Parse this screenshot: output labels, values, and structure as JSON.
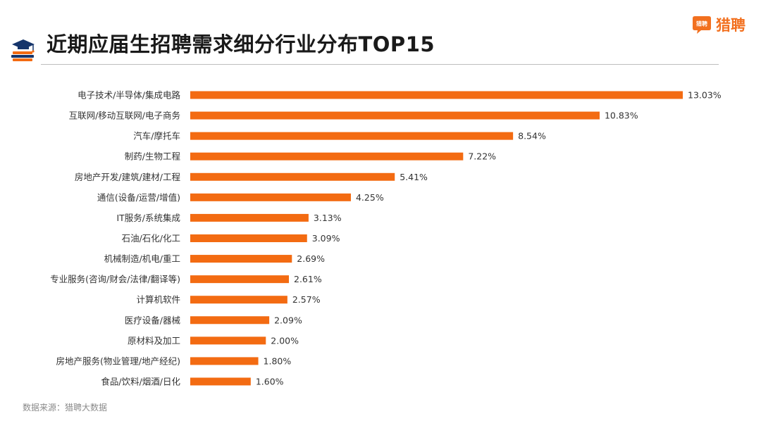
{
  "header": {
    "title": "近期应届生招聘需求细分行业分布TOP15",
    "brand": "猎聘",
    "brand_icon_text": "猎聘",
    "title_icon": "books-graduation-cap-icon"
  },
  "footer": {
    "source": "数据来源：猎聘大数据"
  },
  "colors": {
    "bar": "#f36b12",
    "brand": "#f2701f",
    "rule": "#bdbdbd"
  },
  "chart_data": {
    "type": "bar",
    "orientation": "horizontal",
    "categories": [
      "电子技术/半导体/集成电路",
      "互联网/移动互联网/电子商务",
      "汽车/摩托车",
      "制药/生物工程",
      "房地产开发/建筑/建材/工程",
      "通信(设备/运营/增值)",
      "IT服务/系统集成",
      "石油/石化/化工",
      "机械制造/机电/重工",
      "专业服务(咨询/财会/法律/翻译等)",
      "计算机软件",
      "医疗设备/器械",
      "原材料及加工",
      "房地产服务(物业管理/地产经纪)",
      "食品/饮料/烟酒/日化"
    ],
    "values": [
      13.03,
      10.83,
      8.54,
      7.22,
      5.41,
      4.25,
      3.13,
      3.09,
      2.69,
      2.61,
      2.57,
      2.09,
      2.0,
      1.8,
      1.6
    ],
    "labels": [
      "13.03%",
      "10.83%",
      "8.54%",
      "7.22%",
      "5.41%",
      "4.25%",
      "3.13%",
      "3.09%",
      "2.69%",
      "2.61%",
      "2.57%",
      "2.09%",
      "2.00%",
      "1.80%",
      "1.60%"
    ],
    "xlim": [
      0,
      13.03
    ],
    "grid": false,
    "legend": "none"
  }
}
